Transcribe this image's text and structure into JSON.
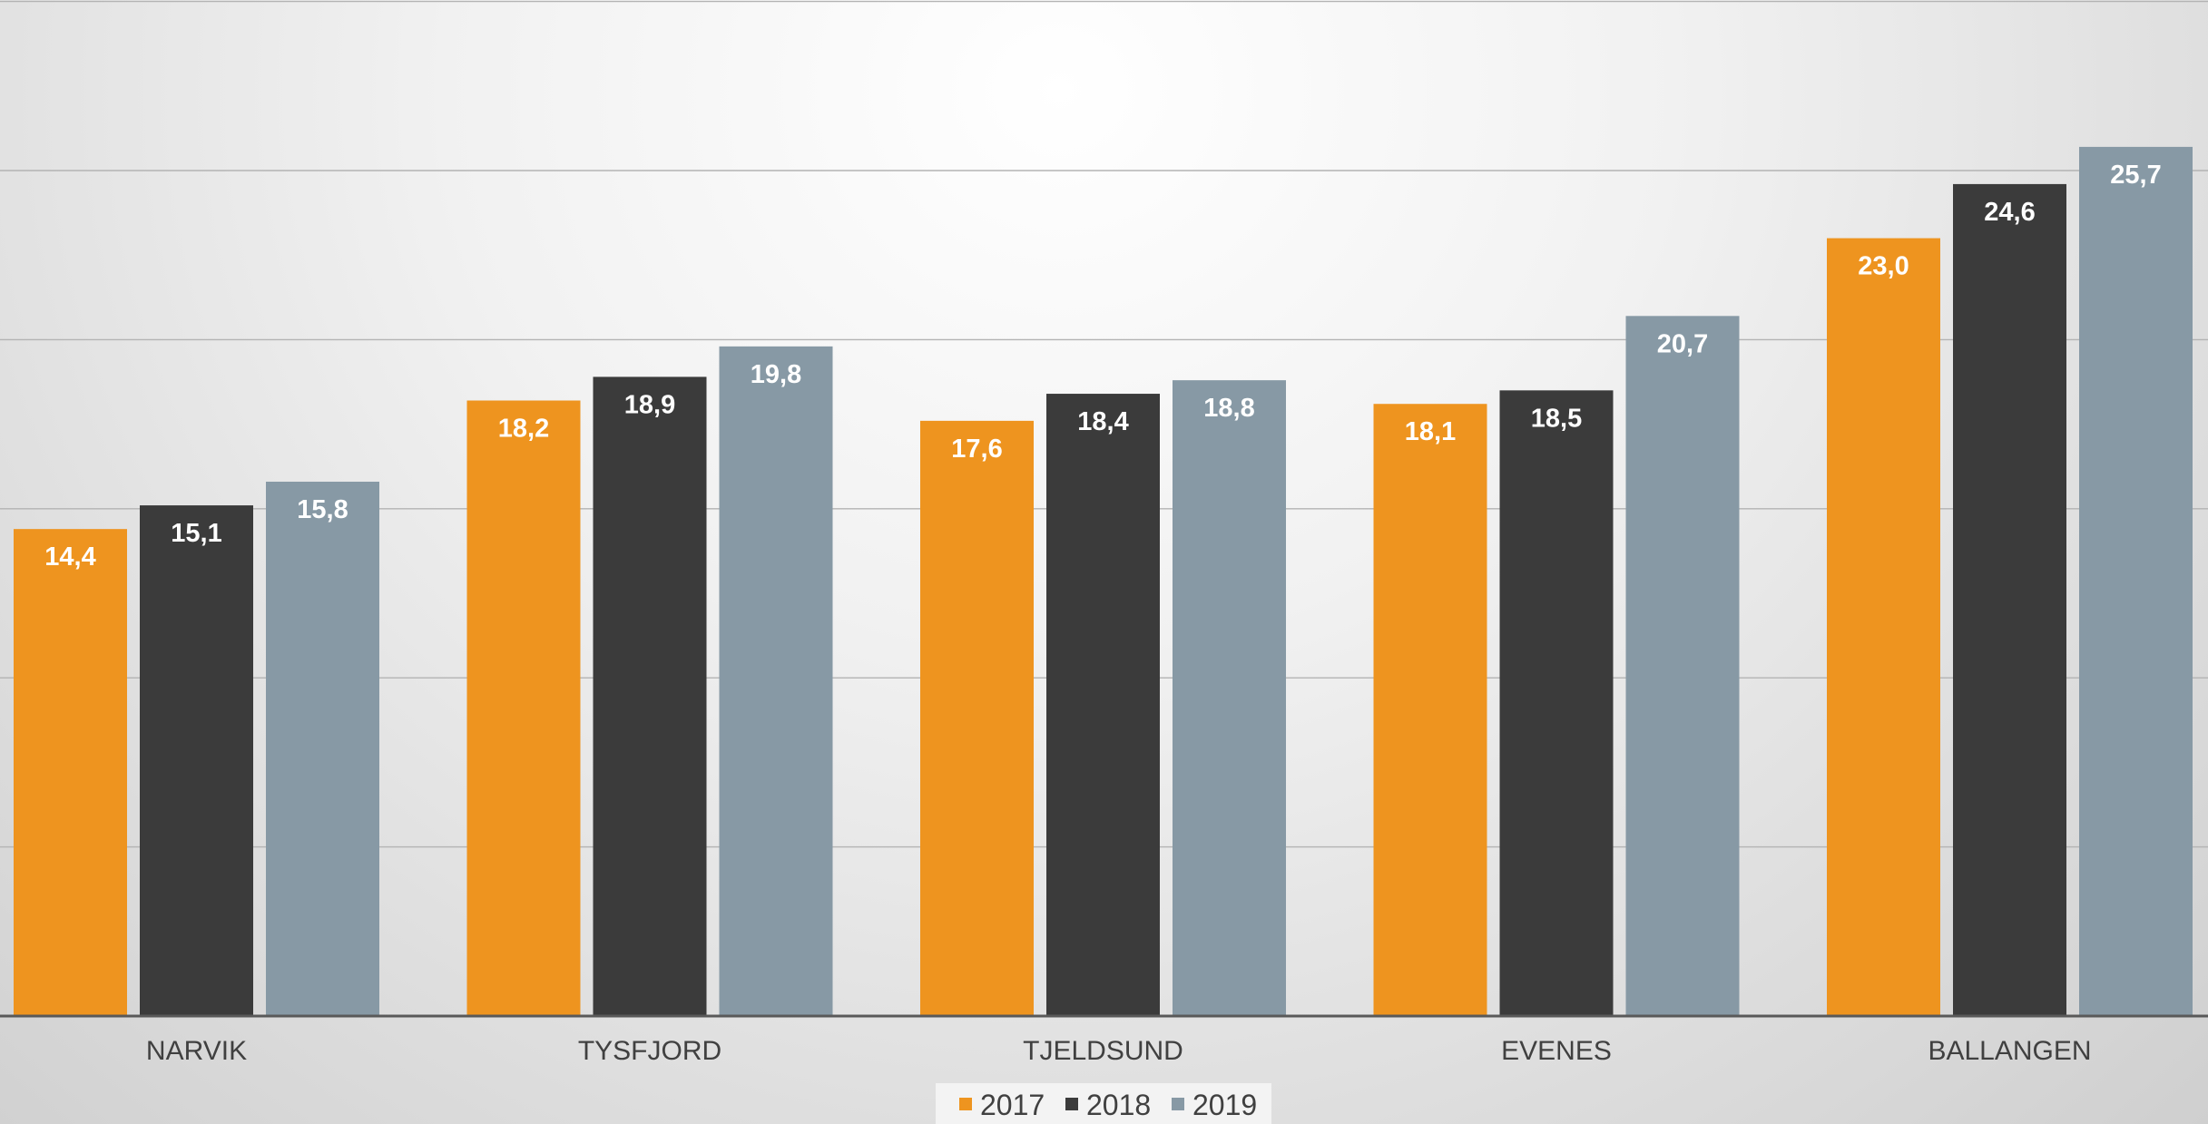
{
  "chart_data": {
    "type": "bar",
    "categories": [
      "NARVIK",
      "TYSFJORD",
      "TJELDSUND",
      "EVENES",
      "BALLANGEN"
    ],
    "series": [
      {
        "name": "2017",
        "color": "#ee941f",
        "values": [
          14.4,
          18.2,
          17.6,
          18.1,
          23.0
        ],
        "labels": [
          "14,4",
          "18,2",
          "17,6",
          "18,1",
          "23,0"
        ]
      },
      {
        "name": "2018",
        "color": "#3b3b3b",
        "values": [
          15.1,
          18.9,
          18.4,
          18.5,
          24.6
        ],
        "labels": [
          "15,1",
          "18,9",
          "18,4",
          "18,5",
          "24,6"
        ]
      },
      {
        "name": "2019",
        "color": "#8799a5",
        "values": [
          15.8,
          19.8,
          18.8,
          20.7,
          25.7
        ],
        "labels": [
          "15,8",
          "19,8",
          "18,8",
          "20,7",
          "25,7"
        ]
      }
    ],
    "ylim": [
      0,
      30
    ],
    "grid": true,
    "legend_position": "bottom"
  }
}
